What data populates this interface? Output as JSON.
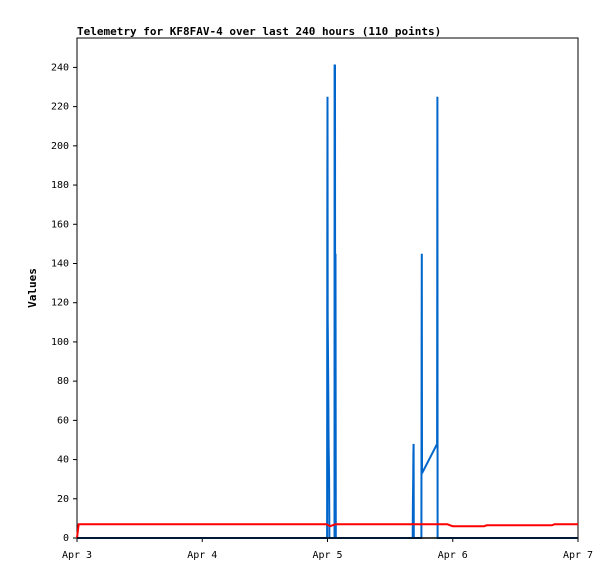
{
  "chart_data": {
    "type": "line",
    "title": "Telemetry for KF8FAV-4 over last 240 hours (110 points)",
    "xlabel": "",
    "ylabel": "Values",
    "xlim": [
      "Apr 3",
      "Apr 7"
    ],
    "ylim": [
      0,
      255
    ],
    "x_ticks": [
      "Apr 3",
      "Apr 4",
      "Apr 5",
      "Apr 6",
      "Apr 7"
    ],
    "y_ticks": [
      0,
      20,
      40,
      60,
      80,
      100,
      120,
      140,
      160,
      180,
      200,
      220,
      240
    ],
    "grid": false,
    "legend": "none",
    "series": [
      {
        "color": "#0066cc",
        "points": [
          [
            "Apr 3 00:00",
            0
          ],
          [
            "Apr 4 00:00",
            0
          ],
          [
            "Apr 4 23:55",
            0
          ],
          [
            "Apr 4 23:57",
            80
          ],
          [
            "Apr 4 23:58",
            160
          ],
          [
            "Apr 5 00:00",
            225
          ],
          [
            "Apr 5 00:02",
            112
          ],
          [
            "Apr 5 00:04",
            106
          ],
          [
            "Apr 5 00:06",
            93
          ],
          [
            "Apr 5 00:08",
            81
          ],
          [
            "Apr 5 00:10",
            68
          ],
          [
            "Apr 5 00:12",
            56
          ],
          [
            "Apr 5 00:14",
            45
          ],
          [
            "Apr 5 00:16",
            38
          ],
          [
            "Apr 5 00:18",
            30
          ],
          [
            "Apr 5 00:20",
            20
          ],
          [
            "Apr 5 00:22",
            0
          ],
          [
            "Apr 5 01:20",
            0
          ],
          [
            "Apr 5 01:22",
            241
          ],
          [
            "Apr 5 01:26",
            241
          ],
          [
            "Apr 5 01:28",
            0
          ],
          [
            "Apr 5 01:32",
            145
          ],
          [
            "Apr 5 01:35",
            0
          ],
          [
            "Apr 5 16:20",
            0
          ],
          [
            "Apr 5 16:22",
            18
          ],
          [
            "Apr 5 16:25",
            30
          ],
          [
            "Apr 5 16:28",
            43
          ],
          [
            "Apr 5 16:30",
            48
          ],
          [
            "Apr 5 16:32",
            0
          ],
          [
            "Apr 5 18:00",
            0
          ],
          [
            "Apr 5 18:02",
            97
          ],
          [
            "Apr 5 18:04",
            145
          ],
          [
            "Apr 5 18:06",
            33
          ],
          [
            "Apr 5 21:00",
            48
          ],
          [
            "Apr 5 21:02",
            160
          ],
          [
            "Apr 5 21:04",
            225
          ],
          [
            "Apr 5 21:06",
            0
          ],
          [
            "Apr 7 00:00",
            0
          ]
        ]
      },
      {
        "color": "#ff0000",
        "points": [
          [
            "Apr 3 00:00",
            0
          ],
          [
            "Apr 3 00:20",
            7
          ],
          [
            "Apr 4 23:50",
            7
          ],
          [
            "Apr 5 00:30",
            6
          ],
          [
            "Apr 5 01:30",
            7
          ],
          [
            "Apr 5 23:00",
            7
          ],
          [
            "Apr 5 23:30",
            6.5
          ],
          [
            "Apr 6 00:00",
            6
          ],
          [
            "Apr 6 06:00",
            6
          ],
          [
            "Apr 6 06:30",
            6.5
          ],
          [
            "Apr 6 19:00",
            6.5
          ],
          [
            "Apr 6 19:30",
            7
          ],
          [
            "Apr 7 00:00",
            7
          ]
        ]
      },
      {
        "color": "#000000",
        "points": [
          [
            "Apr 3 00:00",
            0
          ],
          [
            "Apr 7 00:00",
            0
          ]
        ]
      }
    ]
  }
}
